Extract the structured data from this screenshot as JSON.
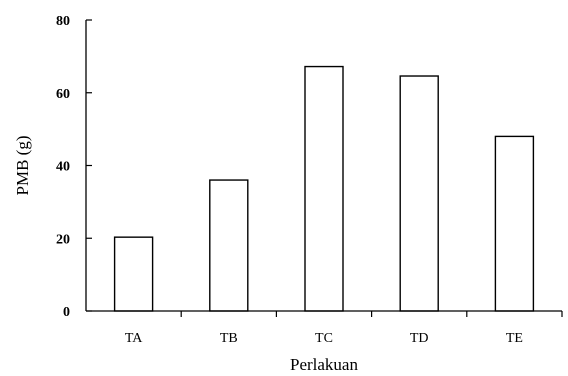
{
  "chart_data": {
    "type": "bar",
    "categories": [
      "TA",
      "TB",
      "TC",
      "TD",
      "TE"
    ],
    "values": [
      20.3,
      36.0,
      67.2,
      64.6,
      48.0
    ],
    "title": "",
    "xlabel": "Perlakuan",
    "ylabel": "PMB (g)",
    "ylim": [
      0,
      80
    ],
    "yticks": [
      0,
      20,
      40,
      60,
      80
    ],
    "grid": false,
    "bar_fill": "#ffffff",
    "bar_stroke": "#000000"
  }
}
